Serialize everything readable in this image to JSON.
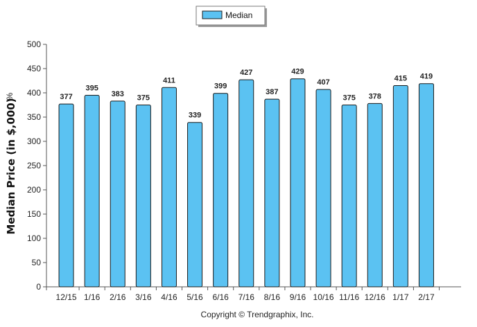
{
  "chart_data": {
    "type": "bar",
    "categories": [
      "12/15",
      "1/16",
      "2/16",
      "3/16",
      "4/16",
      "5/16",
      "6/16",
      "7/16",
      "8/16",
      "9/16",
      "10/16",
      "11/16",
      "12/16",
      "1/17",
      "2/17"
    ],
    "series": [
      {
        "name": "Median",
        "values": [
          377,
          395,
          383,
          375,
          411,
          339,
          399,
          427,
          387,
          429,
          407,
          375,
          378,
          415,
          419
        ]
      }
    ],
    "title": "",
    "xlabel": "",
    "ylabel": "Median Price (in $,000)",
    "ylabel_suffix": "%",
    "ylim": [
      0,
      500
    ],
    "yticks": [
      0,
      50,
      100,
      150,
      200,
      250,
      300,
      350,
      400,
      450,
      500
    ],
    "grid": false,
    "legend_position": "top-center",
    "bar_color": "#5bc2f2",
    "bar_border_color": "#1a1a1a",
    "data_labels": true
  },
  "footer": {
    "copyright": "Copyright © Trendgraphix, Inc."
  }
}
